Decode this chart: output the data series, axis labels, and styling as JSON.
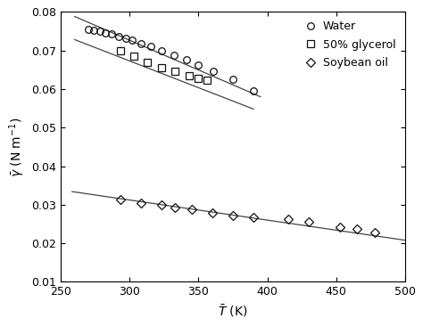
{
  "xlabel": "$\\bar{T}$ (K)",
  "ylabel": "$\\bar{\\gamma}$ (N m$^{-1}$)",
  "xlim": [
    250,
    500
  ],
  "ylim": [
    0.01,
    0.08
  ],
  "yticks": [
    0.01,
    0.02,
    0.03,
    0.04,
    0.05,
    0.06,
    0.07,
    0.08
  ],
  "xticks": [
    250,
    300,
    350,
    400,
    450,
    500
  ],
  "water_T": [
    270,
    274,
    278,
    282,
    287,
    292,
    297,
    302,
    308,
    315,
    323,
    332,
    341,
    350,
    361,
    375,
    390
  ],
  "water_gamma": [
    0.0754,
    0.0752,
    0.0749,
    0.0746,
    0.0742,
    0.0737,
    0.0732,
    0.0726,
    0.0718,
    0.071,
    0.07,
    0.0688,
    0.0675,
    0.0662,
    0.0646,
    0.0625,
    0.0596
  ],
  "water_line_T": [
    260,
    395
  ],
  "water_line_gamma": [
    0.0788,
    0.058
  ],
  "glycerol_T": [
    293,
    303,
    313,
    323,
    333,
    343,
    350,
    356
  ],
  "glycerol_gamma": [
    0.07,
    0.0685,
    0.0668,
    0.0655,
    0.0645,
    0.0635,
    0.0628,
    0.0623
  ],
  "glycerol_line_T": [
    260,
    390
  ],
  "glycerol_line_gamma": [
    0.0728,
    0.0548
  ],
  "soy_T": [
    293,
    308,
    323,
    333,
    345,
    360,
    375,
    390,
    415,
    430,
    453,
    465,
    478
  ],
  "soy_gamma": [
    0.0313,
    0.0305,
    0.03,
    0.0292,
    0.0288,
    0.0278,
    0.0273,
    0.0267,
    0.0262,
    0.0255,
    0.0242,
    0.0238,
    0.0228
  ],
  "soy_line_T": [
    258,
    500
  ],
  "soy_line_gamma": [
    0.0334,
    0.0208
  ],
  "legend_labels": [
    "Water",
    "50% glycerol",
    "Soybean oil"
  ],
  "line_color": "#444444",
  "marker_color": "#111111",
  "background_color": "#ffffff"
}
